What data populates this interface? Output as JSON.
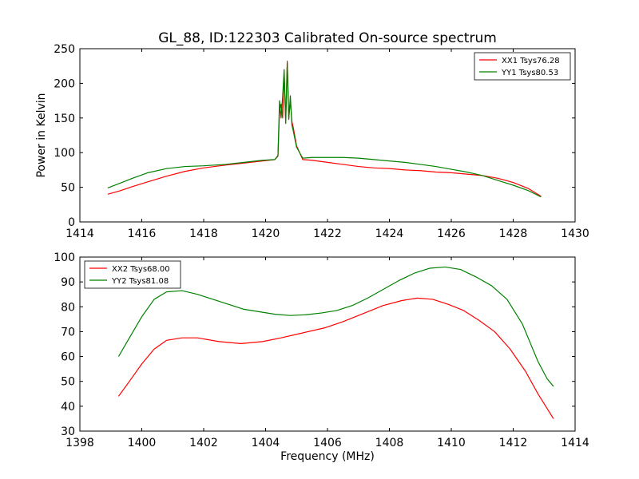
{
  "title": "GL_88, ID:122303 Calibrated On-source spectrum",
  "colors": {
    "red": "#ff0000",
    "green": "#008000"
  },
  "chart_data": [
    {
      "type": "line",
      "xlabel": "",
      "ylabel": "Power in Kelvin",
      "xlim": [
        1414,
        1430
      ],
      "ylim": [
        0,
        250
      ],
      "xticks": [
        1414,
        1416,
        1418,
        1420,
        1422,
        1424,
        1426,
        1428,
        1430
      ],
      "yticks": [
        0,
        50,
        100,
        150,
        200,
        250
      ],
      "grid": false,
      "legend_position": "top-right",
      "series": [
        {
          "name": "XX1 Tsys76.28",
          "color": "#ff0000",
          "points": [
            [
              1414.9,
              40
            ],
            [
              1415.3,
              45
            ],
            [
              1415.7,
              51
            ],
            [
              1416.2,
              58
            ],
            [
              1416.8,
              66
            ],
            [
              1417.4,
              73
            ],
            [
              1418,
              78
            ],
            [
              1418.7,
              82
            ],
            [
              1419.3,
              85
            ],
            [
              1419.9,
              88
            ],
            [
              1420.3,
              90
            ],
            [
              1420.4,
              95
            ],
            [
              1420.45,
              160
            ],
            [
              1420.5,
              170
            ],
            [
              1420.55,
              150
            ],
            [
              1420.6,
              215
            ],
            [
              1420.65,
              145
            ],
            [
              1420.7,
              232
            ],
            [
              1420.75,
              150
            ],
            [
              1420.8,
              175
            ],
            [
              1420.85,
              145
            ],
            [
              1420.9,
              135
            ],
            [
              1421,
              110
            ],
            [
              1421.2,
              90
            ],
            [
              1421.5,
              89
            ],
            [
              1422,
              86
            ],
            [
              1422.5,
              83
            ],
            [
              1423,
              80
            ],
            [
              1423.5,
              78
            ],
            [
              1424,
              77
            ],
            [
              1424.5,
              75
            ],
            [
              1425,
              74
            ],
            [
              1425.5,
              72
            ],
            [
              1426,
              71
            ],
            [
              1426.5,
              69
            ],
            [
              1427,
              67
            ],
            [
              1427.5,
              63
            ],
            [
              1428,
              57
            ],
            [
              1428.5,
              48
            ],
            [
              1428.9,
              37
            ]
          ]
        },
        {
          "name": "YY1 Tsys80.53",
          "color": "#008000",
          "points": [
            [
              1414.9,
              49
            ],
            [
              1415.3,
              56
            ],
            [
              1415.7,
              63
            ],
            [
              1416.2,
              71
            ],
            [
              1416.8,
              77
            ],
            [
              1417.4,
              80
            ],
            [
              1418,
              81
            ],
            [
              1418.7,
              83
            ],
            [
              1419.3,
              86
            ],
            [
              1419.9,
              89
            ],
            [
              1420.3,
              90
            ],
            [
              1420.4,
              96
            ],
            [
              1420.45,
              175
            ],
            [
              1420.5,
              150
            ],
            [
              1420.55,
              180
            ],
            [
              1420.6,
              220
            ],
            [
              1420.65,
              142
            ],
            [
              1420.7,
              230
            ],
            [
              1420.75,
              148
            ],
            [
              1420.8,
              182
            ],
            [
              1420.85,
              140
            ],
            [
              1420.9,
              130
            ],
            [
              1421,
              108
            ],
            [
              1421.2,
              92
            ],
            [
              1421.5,
              93
            ],
            [
              1422,
              93
            ],
            [
              1422.5,
              93
            ],
            [
              1423,
              92
            ],
            [
              1423.5,
              90
            ],
            [
              1424,
              88
            ],
            [
              1424.5,
              86
            ],
            [
              1425,
              83
            ],
            [
              1425.5,
              80
            ],
            [
              1426,
              76
            ],
            [
              1426.5,
              72
            ],
            [
              1427,
              67
            ],
            [
              1427.5,
              60
            ],
            [
              1428,
              53
            ],
            [
              1428.5,
              45
            ],
            [
              1428.9,
              36
            ]
          ]
        }
      ]
    },
    {
      "type": "line",
      "xlabel": "Frequency (MHz)",
      "ylabel": "",
      "xlim": [
        1398,
        1414
      ],
      "ylim": [
        30,
        100
      ],
      "xticks": [
        1398,
        1400,
        1402,
        1404,
        1406,
        1408,
        1410,
        1412,
        1414
      ],
      "yticks": [
        30,
        40,
        50,
        60,
        70,
        80,
        90,
        100
      ],
      "grid": false,
      "legend_position": "top-left",
      "series": [
        {
          "name": "XX2 Tsys68.00",
          "color": "#ff0000",
          "points": [
            [
              1399.25,
              44
            ],
            [
              1399.6,
              50
            ],
            [
              1400,
              57
            ],
            [
              1400.4,
              63
            ],
            [
              1400.8,
              66.5
            ],
            [
              1401.3,
              67.5
            ],
            [
              1401.8,
              67.5
            ],
            [
              1402.5,
              66
            ],
            [
              1403.2,
              65.2
            ],
            [
              1403.9,
              66
            ],
            [
              1404.5,
              67.5
            ],
            [
              1405.2,
              69.5
            ],
            [
              1405.9,
              71.5
            ],
            [
              1406.5,
              74
            ],
            [
              1407.2,
              77.5
            ],
            [
              1407.8,
              80.5
            ],
            [
              1408.4,
              82.5
            ],
            [
              1408.9,
              83.5
            ],
            [
              1409.4,
              83
            ],
            [
              1409.9,
              81
            ],
            [
              1410.4,
              78.5
            ],
            [
              1410.9,
              74.5
            ],
            [
              1411.4,
              70
            ],
            [
              1411.9,
              63
            ],
            [
              1412.4,
              54
            ],
            [
              1412.8,
              45
            ],
            [
              1413.1,
              39
            ],
            [
              1413.3,
              35
            ]
          ]
        },
        {
          "name": "YY2 Tsys81.08",
          "color": "#008000",
          "points": [
            [
              1399.25,
              60
            ],
            [
              1399.6,
              67.5
            ],
            [
              1400,
              76
            ],
            [
              1400.4,
              83
            ],
            [
              1400.8,
              86
            ],
            [
              1401.3,
              86.5
            ],
            [
              1401.8,
              85
            ],
            [
              1402.3,
              83
            ],
            [
              1402.8,
              81
            ],
            [
              1403.3,
              79
            ],
            [
              1403.8,
              78
            ],
            [
              1404.3,
              77
            ],
            [
              1404.8,
              76.5
            ],
            [
              1405.3,
              76.8
            ],
            [
              1405.8,
              77.5
            ],
            [
              1406.3,
              78.5
            ],
            [
              1406.8,
              80.5
            ],
            [
              1407.3,
              83.5
            ],
            [
              1407.8,
              87
            ],
            [
              1408.3,
              90.5
            ],
            [
              1408.8,
              93.5
            ],
            [
              1409.3,
              95.5
            ],
            [
              1409.8,
              96
            ],
            [
              1410.3,
              95
            ],
            [
              1410.8,
              92
            ],
            [
              1411.3,
              88.5
            ],
            [
              1411.8,
              83
            ],
            [
              1412.3,
              73
            ],
            [
              1412.8,
              58
            ],
            [
              1413.1,
              51
            ],
            [
              1413.3,
              48
            ]
          ]
        }
      ]
    }
  ]
}
